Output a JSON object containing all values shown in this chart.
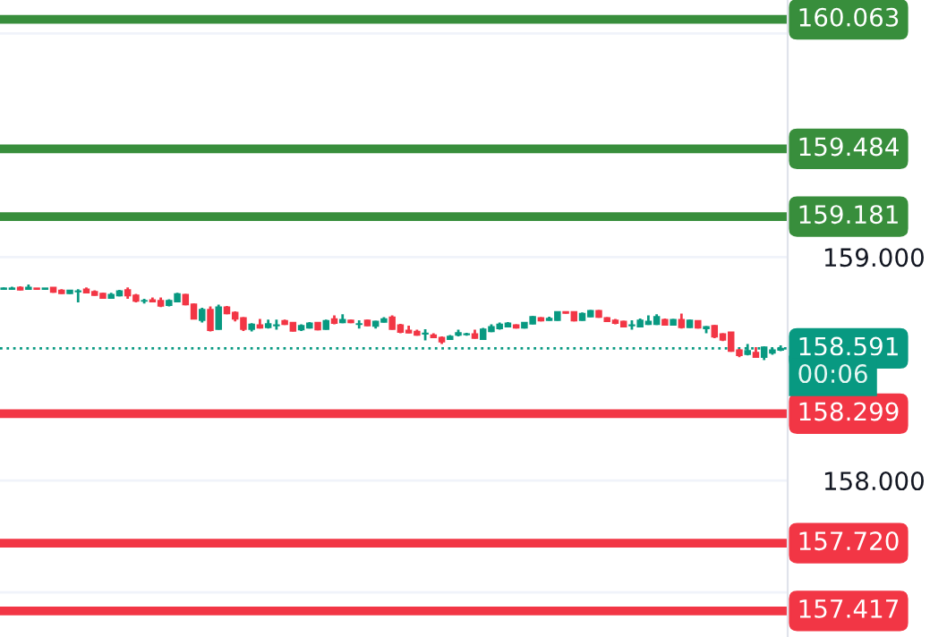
{
  "chart_data": {
    "type": "candlestick",
    "categories": [
      null,
      null,
      null,
      null,
      null,
      null,
      null,
      null,
      null,
      null,
      null,
      null,
      null,
      null,
      null,
      null,
      null,
      null,
      null,
      null,
      null,
      null,
      null,
      null,
      null,
      null,
      null,
      null,
      null,
      null,
      null,
      null,
      null,
      null,
      null,
      null,
      null,
      null,
      null,
      null,
      null,
      null,
      null,
      null,
      null,
      null,
      null,
      null,
      null,
      null,
      null,
      null,
      null,
      null,
      null,
      null,
      null,
      null,
      null,
      null,
      null,
      null,
      null,
      null,
      null,
      null,
      null,
      null,
      null,
      null,
      null,
      null,
      null,
      null,
      null,
      null,
      null,
      null,
      null,
      null,
      null,
      null,
      null,
      null,
      null,
      null,
      null,
      null,
      null,
      null,
      null,
      null,
      null,
      null,
      null
    ],
    "ohlc": [
      [
        158.856,
        158.864,
        158.853,
        158.861
      ],
      [
        158.856,
        158.867,
        158.853,
        158.861
      ],
      [
        158.864,
        158.869,
        158.851,
        158.853
      ],
      [
        158.856,
        158.877,
        158.853,
        158.864
      ],
      [
        158.861,
        158.861,
        158.853,
        158.856
      ],
      [
        158.856,
        158.861,
        158.853,
        158.861
      ],
      [
        158.864,
        158.864,
        158.84,
        158.843
      ],
      [
        158.851,
        158.856,
        158.835,
        158.837
      ],
      [
        158.837,
        158.853,
        158.835,
        158.851
      ],
      [
        158.845,
        158.856,
        158.797,
        158.848
      ],
      [
        158.856,
        158.864,
        158.837,
        158.84
      ],
      [
        158.845,
        158.851,
        158.827,
        158.829
      ],
      [
        158.837,
        158.84,
        158.813,
        158.816
      ],
      [
        158.816,
        158.84,
        158.813,
        158.832
      ],
      [
        158.827,
        158.853,
        158.824,
        158.848
      ],
      [
        158.853,
        158.864,
        158.813,
        158.827
      ],
      [
        158.829,
        158.835,
        158.797,
        158.803
      ],
      [
        158.803,
        158.813,
        158.792,
        158.805
      ],
      [
        158.808,
        158.819,
        158.797,
        158.8
      ],
      [
        158.805,
        158.819,
        158.776,
        158.781
      ],
      [
        158.784,
        158.811,
        158.779,
        158.805
      ],
      [
        158.8,
        158.84,
        158.797,
        158.835
      ],
      [
        158.832,
        158.835,
        158.784,
        158.787
      ],
      [
        158.789,
        158.792,
        158.723,
        158.723
      ],
      [
        158.717,
        158.773,
        158.707,
        158.765
      ],
      [
        158.765,
        158.779,
        158.667,
        158.672
      ],
      [
        158.677,
        158.787,
        158.675,
        158.776
      ],
      [
        158.776,
        158.781,
        158.744,
        158.747
      ],
      [
        158.752,
        158.757,
        158.712,
        158.723
      ],
      [
        158.728,
        158.731,
        158.669,
        158.677
      ],
      [
        158.677,
        158.704,
        158.667,
        158.699
      ],
      [
        158.696,
        158.723,
        158.68,
        158.683
      ],
      [
        158.685,
        158.72,
        158.68,
        158.701
      ],
      [
        158.693,
        158.72,
        158.675,
        158.696
      ],
      [
        158.715,
        158.72,
        158.696,
        158.699
      ],
      [
        158.707,
        158.709,
        158.667,
        158.669
      ],
      [
        158.675,
        158.699,
        158.669,
        158.693
      ],
      [
        158.683,
        158.709,
        158.68,
        158.704
      ],
      [
        158.707,
        158.709,
        158.672,
        158.675
      ],
      [
        158.677,
        158.72,
        158.675,
        158.715
      ],
      [
        158.723,
        158.739,
        158.699,
        158.704
      ],
      [
        158.707,
        158.744,
        158.704,
        158.72
      ],
      [
        158.717,
        158.72,
        158.704,
        158.707
      ],
      [
        158.699,
        158.717,
        158.68,
        158.701
      ],
      [
        158.717,
        158.72,
        158.691,
        158.693
      ],
      [
        158.691,
        158.715,
        158.68,
        158.712
      ],
      [
        158.709,
        158.731,
        158.707,
        158.723
      ],
      [
        158.731,
        158.739,
        158.675,
        158.677
      ],
      [
        158.696,
        158.701,
        158.659,
        158.664
      ],
      [
        158.672,
        158.693,
        158.659,
        158.661
      ],
      [
        158.667,
        158.675,
        158.648,
        158.651
      ],
      [
        158.656,
        158.677,
        158.627,
        158.659
      ],
      [
        158.651,
        158.659,
        158.637,
        158.64
      ],
      [
        158.64,
        158.645,
        158.611,
        158.621
      ],
      [
        158.632,
        158.651,
        158.629,
        158.645
      ],
      [
        158.651,
        158.675,
        158.645,
        158.661
      ],
      [
        158.653,
        158.661,
        158.648,
        158.656
      ],
      [
        158.656,
        158.675,
        158.635,
        158.637
      ],
      [
        158.632,
        158.683,
        158.629,
        158.677
      ],
      [
        158.667,
        158.699,
        158.664,
        158.688
      ],
      [
        158.68,
        158.707,
        158.675,
        158.699
      ],
      [
        158.688,
        158.709,
        158.685,
        158.704
      ],
      [
        158.696,
        158.699,
        158.68,
        158.683
      ],
      [
        158.683,
        158.709,
        158.68,
        158.707
      ],
      [
        158.701,
        158.736,
        158.699,
        158.733
      ],
      [
        158.728,
        158.731,
        158.712,
        158.715
      ],
      [
        158.717,
        158.733,
        158.715,
        158.725
      ],
      [
        158.717,
        158.757,
        158.715,
        158.755
      ],
      [
        158.755,
        158.755,
        158.747,
        158.749
      ],
      [
        158.755,
        158.757,
        158.712,
        158.715
      ],
      [
        158.717,
        158.752,
        158.715,
        158.747
      ],
      [
        158.733,
        158.763,
        158.731,
        158.76
      ],
      [
        158.76,
        158.763,
        158.728,
        158.731
      ],
      [
        158.728,
        158.731,
        158.709,
        158.712
      ],
      [
        158.717,
        158.723,
        158.699,
        158.704
      ],
      [
        158.712,
        158.715,
        158.685,
        158.688
      ],
      [
        158.693,
        158.717,
        158.675,
        158.696
      ],
      [
        158.688,
        158.725,
        158.685,
        158.717
      ],
      [
        158.699,
        158.739,
        158.696,
        158.712
      ],
      [
        158.699,
        158.744,
        158.696,
        158.733
      ],
      [
        158.72,
        158.725,
        158.693,
        158.696
      ],
      [
        158.696,
        158.723,
        158.693,
        158.72
      ],
      [
        158.72,
        158.747,
        158.68,
        158.685
      ],
      [
        158.685,
        158.72,
        158.683,
        158.717
      ],
      [
        158.715,
        158.717,
        158.68,
        158.683
      ],
      [
        158.68,
        158.691,
        158.659,
        158.688
      ],
      [
        158.693,
        158.696,
        158.637,
        158.643
      ],
      [
        158.656,
        158.659,
        158.624,
        158.629
      ],
      [
        158.664,
        158.664,
        158.576,
        158.579
      ],
      [
        158.584,
        158.589,
        158.552,
        158.56
      ],
      [
        158.565,
        158.611,
        158.56,
        158.581
      ],
      [
        158.573,
        158.597,
        158.549,
        158.552
      ],
      [
        158.552,
        158.6,
        158.539,
        158.597
      ],
      [
        158.571,
        158.592,
        158.563,
        158.584
      ],
      [
        158.584,
        158.605,
        158.579,
        158.591
      ]
    ],
    "colors": [
      "#089981",
      "#089981",
      "#f23645",
      "#089981",
      "#f23645",
      "#089981",
      "#f23645",
      "#f23645",
      "#089981",
      "#089981",
      "#f23645",
      "#f23645",
      "#f23645",
      "#089981",
      "#089981",
      "#f23645",
      "#f23645",
      "#089981",
      "#f23645",
      "#f23645",
      "#089981",
      "#089981",
      "#f23645",
      "#f23645",
      "#089981",
      "#f23645",
      "#089981",
      "#f23645",
      "#f23645",
      "#f23645",
      "#089981",
      "#f23645",
      "#089981",
      "#089981",
      "#f23645",
      "#f23645",
      "#089981",
      "#089981",
      "#f23645",
      "#089981",
      "#f23645",
      "#089981",
      "#f23645",
      "#089981",
      "#f23645",
      "#089981",
      "#089981",
      "#f23645",
      "#f23645",
      "#f23645",
      "#f23645",
      "#089981",
      "#f23645",
      "#f23645",
      "#089981",
      "#089981",
      "#089981",
      "#f23645",
      "#089981",
      "#089981",
      "#089981",
      "#089981",
      "#f23645",
      "#089981",
      "#089981",
      "#f23645",
      "#089981",
      "#089981",
      "#f23645",
      "#f23645",
      "#089981",
      "#089981",
      "#f23645",
      "#f23645",
      "#f23645",
      "#f23645",
      "#089981",
      "#089981",
      "#089981",
      "#089981",
      "#f23645",
      "#089981",
      "#f23645",
      "#089981",
      "#f23645",
      "#089981",
      "#f23645",
      "#f23645",
      "#f23645",
      "#f23645",
      "#089981",
      "#f23645",
      "#089981",
      "#089981",
      "#089981"
    ],
    "ylim": [
      157.3,
      160.15
    ],
    "yticks": [
      {
        "value": 157.5,
        "label": null
      },
      {
        "value": 158,
        "label": "158.000"
      },
      {
        "value": 159,
        "label": "159.000"
      },
      {
        "value": 160,
        "label": null
      }
    ],
    "grid": "y",
    "ref_lines": [
      {
        "axis": "y",
        "value": 160.063,
        "label": "160.063",
        "color": "#388e3c",
        "line_style": "solid"
      },
      {
        "axis": "y",
        "value": 159.484,
        "label": "159.484",
        "color": "#388e3c",
        "line_style": "solid"
      },
      {
        "axis": "y",
        "value": 159.181,
        "label": "159.181",
        "color": "#388e3c",
        "line_style": "solid"
      },
      {
        "axis": "y",
        "value": 158.591,
        "label": "158.591",
        "color": "#089981",
        "line_style": "dotted"
      },
      {
        "axis": "y",
        "value": 158.299,
        "label": "158.299",
        "color": "#f23645",
        "line_style": "solid"
      },
      {
        "axis": "y",
        "value": 157.72,
        "label": "157.720",
        "color": "#f23645",
        "line_style": "solid"
      },
      {
        "axis": "y",
        "value": 157.417,
        "label": "157.417",
        "color": "#f23645",
        "line_style": "solid"
      }
    ],
    "annotations": [
      "00:06"
    ]
  }
}
